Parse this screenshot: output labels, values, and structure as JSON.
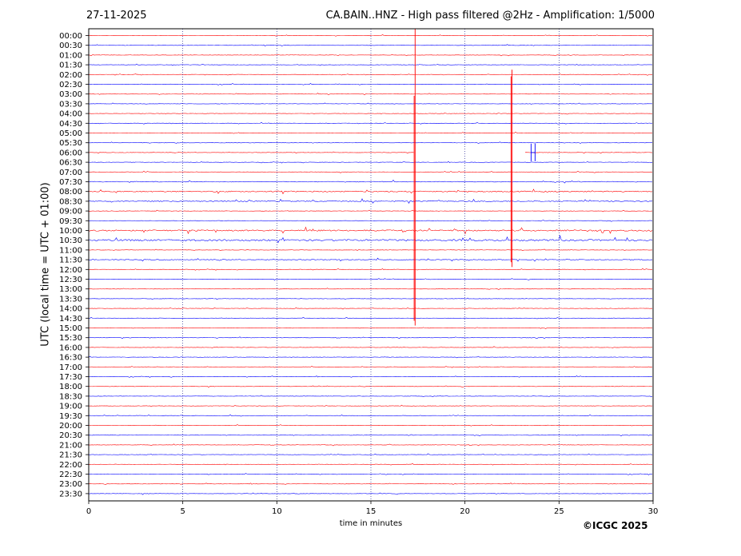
{
  "header": {
    "date": "27-11-2025",
    "title": "CA.BAIN..HNZ - High pass filtered @2Hz - Amplification: 1/5000"
  },
  "footer": {
    "copyright": "©ICGC 2025"
  },
  "colors": {
    "trace_a": "#ff0000",
    "trace_b": "#0000ff",
    "axis": "#000000",
    "grid": "#000080"
  },
  "chart_data": {
    "type": "helicorder",
    "xlabel": "time in minutes",
    "ylabel": "UTC (local time = UTC + 01:00)",
    "xlim": [
      0,
      30
    ],
    "xticks": [
      0,
      5,
      10,
      15,
      20,
      25,
      30
    ],
    "vertical_grid_minutes": [
      5,
      10,
      15,
      20,
      25
    ],
    "grid": "dotted vertical lines every 5 minutes",
    "row_minutes": 30,
    "rows": [
      "00:00",
      "00:30",
      "01:00",
      "01:30",
      "02:00",
      "02:30",
      "03:00",
      "03:30",
      "04:00",
      "04:30",
      "05:00",
      "05:30",
      "06:00",
      "06:30",
      "07:00",
      "07:30",
      "08:00",
      "08:30",
      "09:00",
      "09:30",
      "10:00",
      "10:30",
      "11:00",
      "11:30",
      "12:00",
      "12:30",
      "13:00",
      "13:30",
      "14:00",
      "14:30",
      "15:00",
      "15:30",
      "16:00",
      "16:30",
      "17:00",
      "17:30",
      "18:00",
      "18:30",
      "19:00",
      "19:30",
      "20:00",
      "20:30",
      "21:00",
      "21:30",
      "22:00",
      "22:30",
      "23:00",
      "23:30"
    ],
    "row_colors": "alternating red (even rows) and blue (odd rows)",
    "noise_level": {
      "10:00": 0.55,
      "10:30": 0.7,
      "08:00": 0.45,
      "08:30": 0.4,
      "11:30": 0.3,
      "07:30": 0.3
    },
    "data_gap": {
      "row": "06:00",
      "x_start": 17.3,
      "x_end": 23.2
    },
    "events": [
      {
        "x": 17.35,
        "row_start": "00:00",
        "row_end": "15:00",
        "peak_row": "03:30",
        "color": "red"
      },
      {
        "x": 22.5,
        "row_start": "02:00",
        "row_end": "12:00",
        "peak_row": "02:30",
        "color": "red"
      },
      {
        "x": 23.6,
        "row_start": "05:30",
        "row_end": "06:00",
        "color": "blue"
      }
    ]
  }
}
